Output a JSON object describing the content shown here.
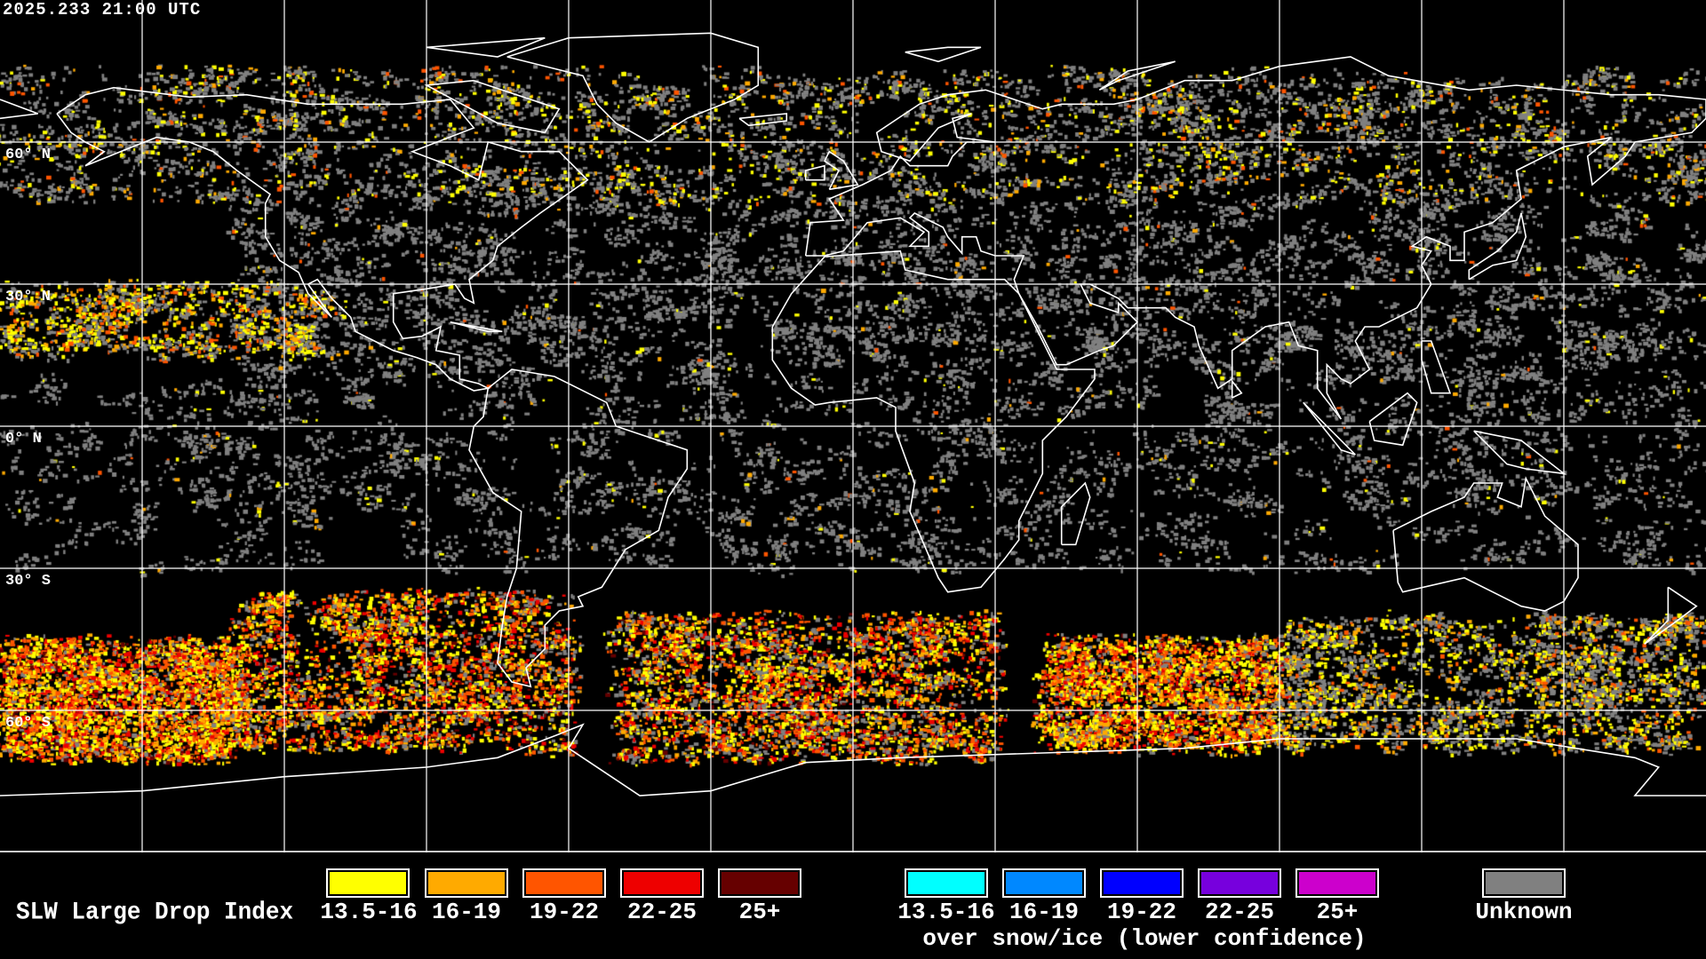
{
  "header": {
    "timestamp": "2025.233 21:00 UTC"
  },
  "map": {
    "projection": "equirectangular",
    "lon_range": [
      -180,
      180
    ],
    "lat_range": [
      -90,
      90
    ],
    "grid_spacing_deg": 30,
    "lat_labels": [
      "60° N",
      "30° N",
      "0° N",
      "30° S",
      "60° S"
    ],
    "coastline_color": "#ffffff",
    "grid_color": "#ffffff"
  },
  "legend": {
    "title": "SLW Large Drop Index",
    "standard": [
      {
        "label": "13.5-16",
        "color": "#ffff00"
      },
      {
        "label": "16-19",
        "color": "#ffaa00"
      },
      {
        "label": "19-22",
        "color": "#ff5500"
      },
      {
        "label": "22-25",
        "color": "#ee0000"
      },
      {
        "label": "25+",
        "color": "#660000"
      }
    ],
    "snow_ice": [
      {
        "label": "13.5-16",
        "color": "#00ffff"
      },
      {
        "label": "16-19",
        "color": "#0088ff"
      },
      {
        "label": "19-22",
        "color": "#0000ff"
      },
      {
        "label": "22-25",
        "color": "#7700dd"
      },
      {
        "label": "25+",
        "color": "#cc00cc"
      }
    ],
    "snow_ice_caption": "over snow/ice (lower confidence)",
    "unknown": {
      "label": "Unknown",
      "color": "#808080"
    }
  }
}
